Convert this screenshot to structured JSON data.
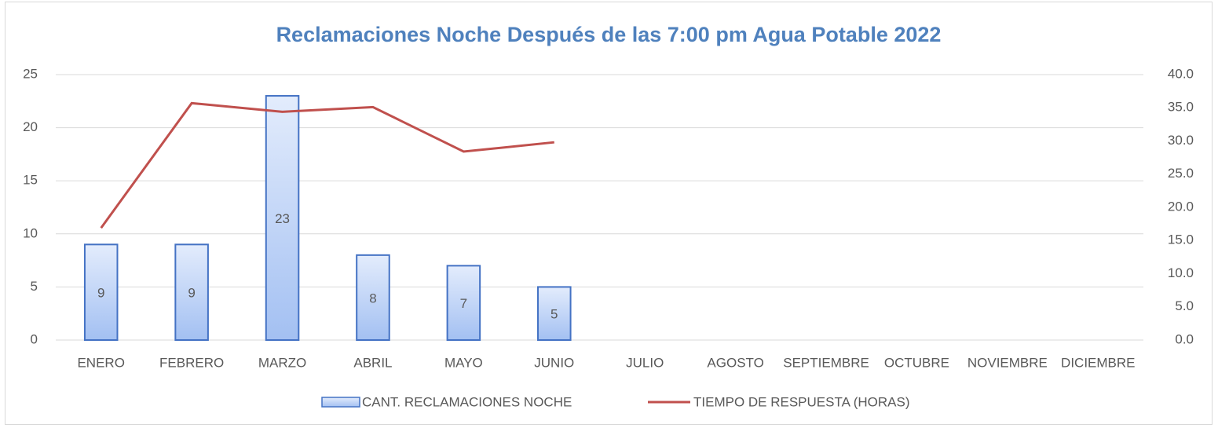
{
  "chart_data": {
    "type": "bar",
    "title": "Reclamaciones Noche Después de las 7:00 pm Agua Potable 2022",
    "categories": [
      "ENERO",
      "FEBRERO",
      "MARZO",
      "ABRIL",
      "MAYO",
      "JUNIO",
      "JULIO",
      "AGOSTO",
      "SEPTIEMBRE",
      "OCTUBRE",
      "NOVIEMBRE",
      "DICIEMBRE"
    ],
    "series": [
      {
        "name": "CANT. RECLAMACIONES NOCHE",
        "type": "bar",
        "color": "#4472c4",
        "values": [
          9,
          9,
          23,
          8,
          7,
          5,
          null,
          null,
          null,
          null,
          null,
          null
        ]
      },
      {
        "name": "TIEMPO DE RESPUESTA (HORAS)",
        "type": "line",
        "axis": "y2",
        "color": "#c0504d",
        "values": [
          16.9,
          35.7,
          34.4,
          35.1,
          28.4,
          29.8,
          null,
          null,
          null,
          null,
          null,
          null
        ]
      }
    ],
    "ylim": [
      0,
      25
    ],
    "yticks": [
      0,
      5,
      10,
      15,
      20,
      25
    ],
    "y2lim": [
      0,
      40
    ],
    "y2ticks": [
      {
        "value": 0,
        "label": "0.0"
      },
      {
        "value": 5,
        "label": "5.0"
      },
      {
        "value": 10,
        "label": "10.0"
      },
      {
        "value": 15,
        "label": "15.0"
      },
      {
        "value": 20,
        "label": "20.0"
      },
      {
        "value": 25,
        "label": "25.0"
      },
      {
        "value": 30,
        "label": "30.0"
      },
      {
        "value": 35,
        "label": "35.0"
      },
      {
        "value": 40,
        "label": "40.0"
      }
    ],
    "grid": true,
    "legend": "bottom"
  }
}
